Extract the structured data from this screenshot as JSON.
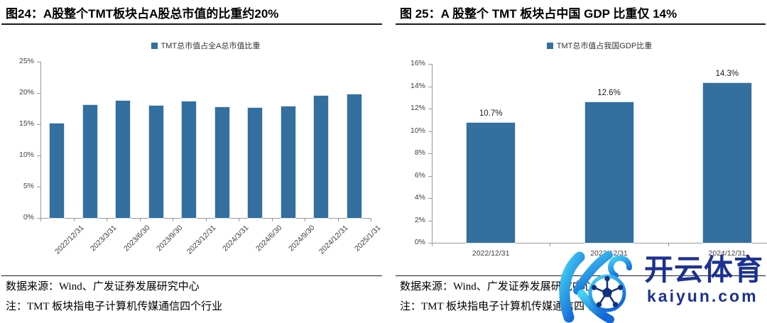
{
  "panels": [
    {
      "title": "图24：A股整个TMT板块占A股总市值的比重约20%",
      "source": "数据来源：Wind、广发证券发展研究中心",
      "note": "注：TMT 板块指电子计算机传媒通信四个行业"
    },
    {
      "title": "图 25：A 股整个 TMT 板块占中国 GDP 比重仅 14%",
      "source": "数据来源：Wind、广发证券发展研究中心",
      "note": "注：TMT 板块指电子计算机传媒通信四个行业"
    }
  ],
  "chart_data": [
    {
      "type": "bar",
      "title": "A股整个TMT板块占A股总市值的比重约20%",
      "legend_label": "TMT总市值占全A总市值比重",
      "legend_position": "top",
      "categories": [
        "2022/12/31",
        "2023/3/31",
        "2023/6/30",
        "2023/9/30",
        "2023/12/31",
        "2024/3/31",
        "2024/6/30",
        "2024/9/30",
        "2024/12/31",
        "2025/1/31"
      ],
      "values": [
        15.1,
        18.1,
        18.7,
        17.9,
        18.6,
        17.7,
        17.6,
        17.8,
        19.6,
        19.8
      ],
      "unit": "%",
      "xlabel": "",
      "ylabel": "",
      "ylim": [
        0,
        25
      ],
      "ytick_step": 5,
      "yticks": [
        "0%",
        "5%",
        "10%",
        "15%",
        "20%",
        "25%"
      ],
      "grid": false,
      "bar_color": "#336F9F",
      "xtick_rotation": -45,
      "data_labels": null
    },
    {
      "type": "bar",
      "title": "A 股整个 TMT 板块占中国 GDP 比重仅 14%",
      "legend_label": "TMT总市值占我国GDP比重",
      "legend_position": "top",
      "categories": [
        "2022/12/31",
        "2023/12/31",
        "2024/12/31"
      ],
      "values": [
        10.7,
        12.6,
        14.3
      ],
      "data_labels": [
        "10.7%",
        "12.6%",
        "14.3%"
      ],
      "unit": "%",
      "xlabel": "",
      "ylabel": "",
      "ylim": [
        0,
        16
      ],
      "ytick_step": 2,
      "yticks": [
        "0%",
        "2%",
        "4%",
        "6%",
        "8%",
        "10%",
        "12%",
        "14%",
        "16%"
      ],
      "grid": false,
      "bar_color": "#336F9F",
      "xtick_rotation": 0
    }
  ],
  "watermark": {
    "brand": "开云体育",
    "domain": "kaiyun.com",
    "brand_color": "#1C3190",
    "logo_gradient_top": "#45D4F4",
    "logo_gradient_bottom": "#1268D8"
  },
  "colors": {
    "bar": "#336F9F",
    "axis": "#9A9A9A",
    "tick_text": "#404040",
    "rule": "#1A1A1A"
  }
}
